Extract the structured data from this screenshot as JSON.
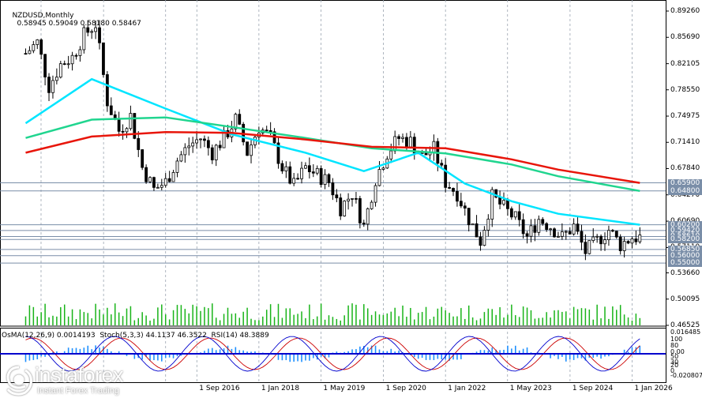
{
  "header": {
    "title": "NZDUSD,Monthly",
    "ohlc": "0.58945 0.59049 0.58180 0.58467"
  },
  "indicator_header": "OsMA(12,26,9) 0.0014193  Stoch(5,3,3) 44.1137 46.3522  RSI(14) 48.3889",
  "branding": {
    "brand": "instaforex",
    "tagline": "Instant Forex Trading"
  },
  "colors": {
    "candle": "#000000",
    "ma_fast": "#00e5ff",
    "ma_mid": "#20d58f",
    "ma_slow": "#e8150a",
    "volume": "#19b419",
    "osma": "#1e90ff",
    "stoch": "#0000cd",
    "stoch_signal": "#cc0000",
    "level_line": "#7a8ea8",
    "tag_bg": "#7a8ea8",
    "grid": "#9aa4b0"
  },
  "chart_data": {
    "type": "candlestick",
    "symbol": "NZDUSD",
    "timeframe": "Monthly",
    "price_axis_ticks": [
      "0.89260",
      "0.85690",
      "0.82105",
      "0.78550",
      "0.74975",
      "0.71410",
      "0.67840",
      "0.64270",
      "0.60690",
      "0.57110",
      "0.53660",
      "0.50095",
      "0.46525"
    ],
    "horizontal_levels": [
      {
        "label": "0.65900",
        "value": 0.659
      },
      {
        "label": "0.64800",
        "value": 0.648
      },
      {
        "label": "0.60200",
        "value": 0.602
      },
      {
        "label": "0.59420",
        "value": 0.5942
      },
      {
        "label": "0.58610",
        "value": 0.5861
      },
      {
        "label": "0.58200",
        "value": 0.582
      },
      {
        "label": "0.56850",
        "value": 0.5685
      },
      {
        "label": "0.56000",
        "value": 0.56
      },
      {
        "label": "0.55000",
        "value": 0.55
      }
    ],
    "x_axis_labels": [
      "1 Sep 2016",
      "1 Jan 2018",
      "1 May 2019",
      "1 Sep 2020",
      "1 Jan 2022",
      "1 May 2023",
      "1 Sep 2024",
      "1 Jan 2026"
    ],
    "indicator_axis_ticks": [
      "0.016485",
      "100",
      "80",
      "0.00",
      "50",
      "30",
      "20",
      "0",
      "-0.020807"
    ],
    "close_path": [
      {
        "date": "2013-01",
        "value": 0.835
      },
      {
        "date": "2013-04",
        "value": 0.85
      },
      {
        "date": "2013-07",
        "value": 0.79
      },
      {
        "date": "2013-10",
        "value": 0.82
      },
      {
        "date": "2014-01",
        "value": 0.83
      },
      {
        "date": "2014-04",
        "value": 0.86
      },
      {
        "date": "2014-07",
        "value": 0.875
      },
      {
        "date": "2014-10",
        "value": 0.77
      },
      {
        "date": "2015-01",
        "value": 0.73
      },
      {
        "date": "2015-04",
        "value": 0.75
      },
      {
        "date": "2015-07",
        "value": 0.68
      },
      {
        "date": "2015-10",
        "value": 0.65
      },
      {
        "date": "2016-01",
        "value": 0.66
      },
      {
        "date": "2016-04",
        "value": 0.69
      },
      {
        "date": "2016-07",
        "value": 0.71
      },
      {
        "date": "2016-10",
        "value": 0.72
      },
      {
        "date": "2017-01",
        "value": 0.7
      },
      {
        "date": "2017-04",
        "value": 0.72
      },
      {
        "date": "2017-07",
        "value": 0.745
      },
      {
        "date": "2017-10",
        "value": 0.7
      },
      {
        "date": "2018-01",
        "value": 0.735
      },
      {
        "date": "2018-04",
        "value": 0.72
      },
      {
        "date": "2018-07",
        "value": 0.68
      },
      {
        "date": "2018-10",
        "value": 0.655
      },
      {
        "date": "2019-01",
        "value": 0.68
      },
      {
        "date": "2019-04",
        "value": 0.67
      },
      {
        "date": "2019-07",
        "value": 0.66
      },
      {
        "date": "2019-10",
        "value": 0.625
      },
      {
        "date": "2020-01",
        "value": 0.645
      },
      {
        "date": "2020-04",
        "value": 0.6
      },
      {
        "date": "2020-07",
        "value": 0.665
      },
      {
        "date": "2020-10",
        "value": 0.7
      },
      {
        "date": "2021-01",
        "value": 0.72
      },
      {
        "date": "2021-04",
        "value": 0.715
      },
      {
        "date": "2021-07",
        "value": 0.695
      },
      {
        "date": "2021-10",
        "value": 0.705
      },
      {
        "date": "2022-01",
        "value": 0.66
      },
      {
        "date": "2022-04",
        "value": 0.645
      },
      {
        "date": "2022-07",
        "value": 0.61
      },
      {
        "date": "2022-10",
        "value": 0.58
      },
      {
        "date": "2023-01",
        "value": 0.64
      },
      {
        "date": "2023-04",
        "value": 0.625
      },
      {
        "date": "2023-07",
        "value": 0.61
      },
      {
        "date": "2023-10",
        "value": 0.585
      },
      {
        "date": "2024-01",
        "value": 0.61
      },
      {
        "date": "2024-04",
        "value": 0.6
      },
      {
        "date": "2024-07",
        "value": 0.585
      },
      {
        "date": "2024-10",
        "value": 0.6
      },
      {
        "date": "2025-01",
        "value": 0.565
      },
      {
        "date": "2025-04",
        "value": 0.58
      },
      {
        "date": "2025-07",
        "value": 0.595
      },
      {
        "date": "2025-10",
        "value": 0.575
      },
      {
        "date": "2026-01",
        "value": 0.585
      },
      {
        "date": "2026-03",
        "value": 0.5847
      }
    ],
    "moving_averages": [
      {
        "color": "#00e5ff",
        "path": [
          {
            "date": "2013-01",
            "value": 0.74
          },
          {
            "date": "2014-06",
            "value": 0.8
          },
          {
            "date": "2016-01",
            "value": 0.76
          },
          {
            "date": "2017-06",
            "value": 0.725
          },
          {
            "date": "2019-01",
            "value": 0.7
          },
          {
            "date": "2020-04",
            "value": 0.675
          },
          {
            "date": "2021-06",
            "value": 0.7
          },
          {
            "date": "2022-06",
            "value": 0.658
          },
          {
            "date": "2023-06",
            "value": 0.634
          },
          {
            "date": "2024-06",
            "value": 0.617
          },
          {
            "date": "2026-03",
            "value": 0.602
          }
        ]
      },
      {
        "color": "#20d58f",
        "path": [
          {
            "date": "2013-01",
            "value": 0.72
          },
          {
            "date": "2014-06",
            "value": 0.745
          },
          {
            "date": "2016-01",
            "value": 0.748
          },
          {
            "date": "2017-06",
            "value": 0.735
          },
          {
            "date": "2019-01",
            "value": 0.72
          },
          {
            "date": "2020-06",
            "value": 0.706
          },
          {
            "date": "2022-01",
            "value": 0.699
          },
          {
            "date": "2023-06",
            "value": 0.684
          },
          {
            "date": "2024-06",
            "value": 0.668
          },
          {
            "date": "2026-03",
            "value": 0.648
          }
        ]
      },
      {
        "color": "#e8150a",
        "path": [
          {
            "date": "2013-01",
            "value": 0.7
          },
          {
            "date": "2014-06",
            "value": 0.722
          },
          {
            "date": "2016-01",
            "value": 0.728
          },
          {
            "date": "2017-06",
            "value": 0.727
          },
          {
            "date": "2019-01",
            "value": 0.718
          },
          {
            "date": "2020-06",
            "value": 0.708
          },
          {
            "date": "2022-01",
            "value": 0.706
          },
          {
            "date": "2023-06",
            "value": 0.691
          },
          {
            "date": "2024-06",
            "value": 0.677
          },
          {
            "date": "2026-03",
            "value": 0.659
          }
        ]
      }
    ]
  }
}
